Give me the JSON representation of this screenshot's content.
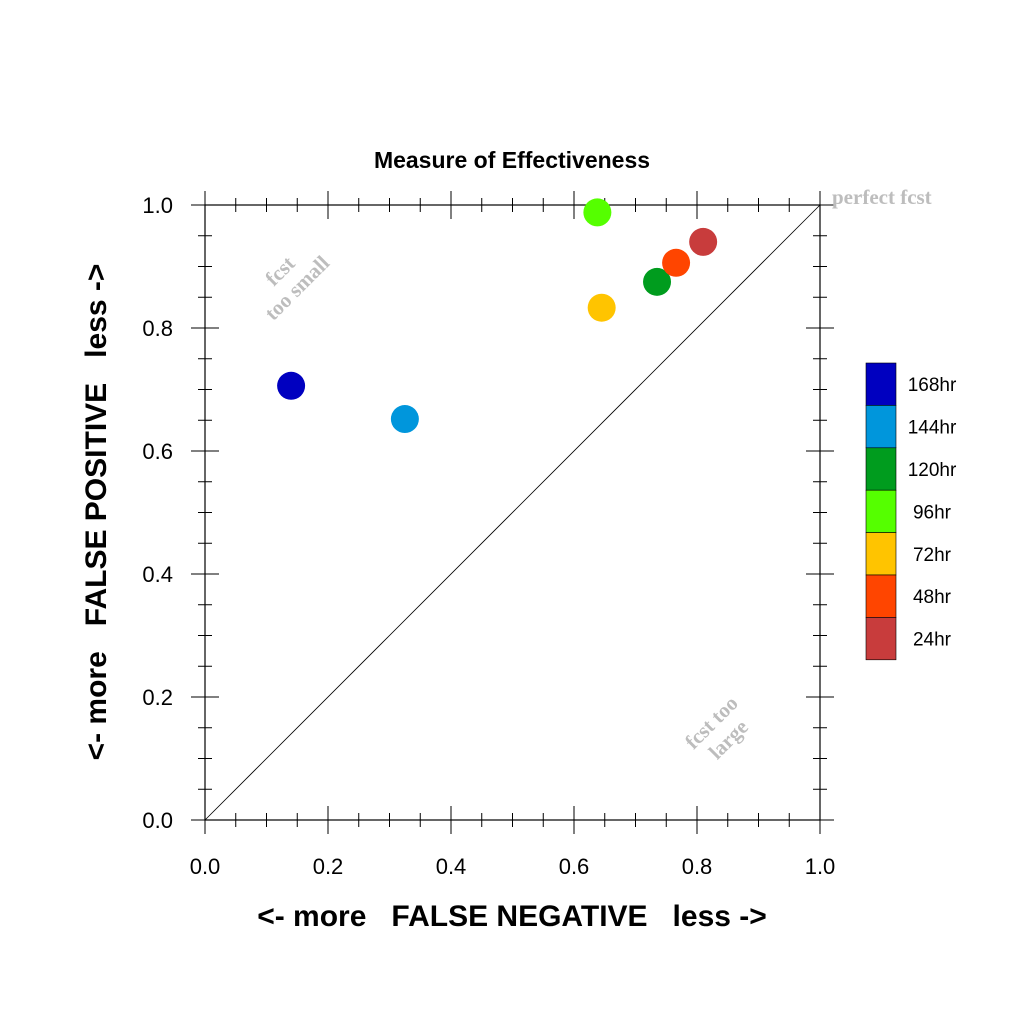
{
  "chart_data": {
    "type": "scatter",
    "title": "Measure of Effectiveness",
    "xlabel": "<- more   FALSE NEGATIVE   less ->",
    "ylabel": "<- more   FALSE POSITIVE   less ->",
    "xlim": [
      0,
      1
    ],
    "ylim": [
      0,
      1
    ],
    "xticks": [
      "0.0",
      "0.2",
      "0.4",
      "0.6",
      "0.8",
      "1.0"
    ],
    "yticks": [
      "0.0",
      "0.2",
      "0.4",
      "0.6",
      "0.8",
      "1.0"
    ],
    "grid": false,
    "legend_position": "right",
    "diagonal_reference_line": true,
    "series": [
      {
        "name": "168hr",
        "color": "#0000c0",
        "x": 0.14,
        "y": 0.706
      },
      {
        "name": "144hr",
        "color": "#0096dc",
        "x": 0.325,
        "y": 0.652
      },
      {
        "name": "120hr",
        "color": "#009c1e",
        "x": 0.735,
        "y": 0.875
      },
      {
        "name": "96hr",
        "color": "#55ff00",
        "x": 0.638,
        "y": 0.988
      },
      {
        "name": "72hr",
        "color": "#ffc400",
        "x": 0.645,
        "y": 0.833
      },
      {
        "name": "48hr",
        "color": "#ff4500",
        "x": 0.766,
        "y": 0.906
      },
      {
        "name": "24hr",
        "color": "#c83c3c",
        "x": 0.81,
        "y": 0.94
      }
    ],
    "annotations": {
      "perfect": "perfect fcst",
      "too_small_1": "fcst",
      "too_small_2": "too small",
      "too_large_1": "fcst too",
      "too_large_2": "large"
    }
  }
}
